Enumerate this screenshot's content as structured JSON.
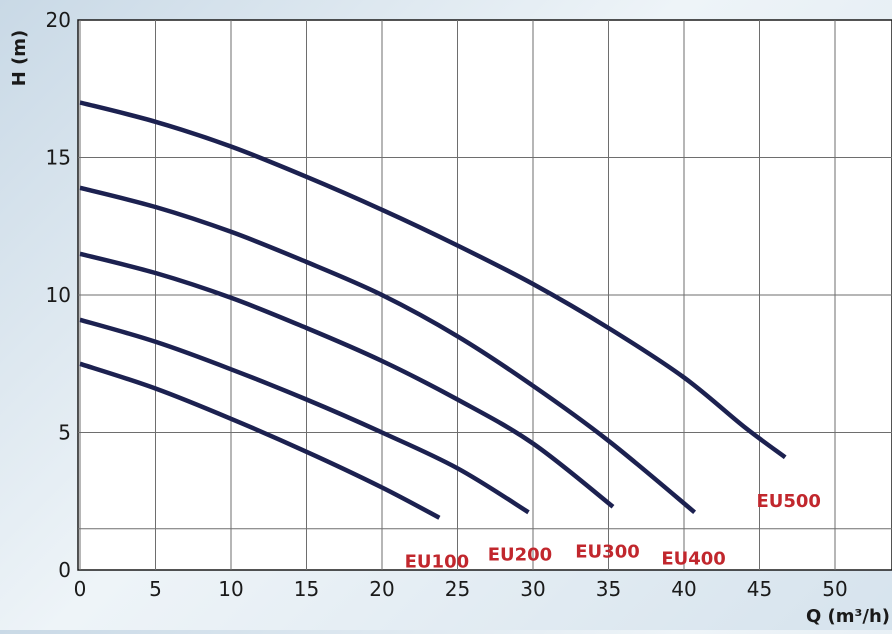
{
  "chart_data": {
    "type": "line",
    "title": "",
    "xlabel": "Q (m³/h)",
    "ylabel": "H (m)",
    "xlim": [
      0,
      52
    ],
    "ylim": [
      0,
      20
    ],
    "xticks": [
      0,
      5,
      10,
      15,
      20,
      25,
      30,
      35,
      40,
      45,
      50
    ],
    "yticks": [
      0,
      5,
      10,
      15,
      20
    ],
    "xgrid": [
      0,
      5,
      10,
      15,
      20,
      25,
      30,
      35,
      40,
      45,
      50
    ],
    "ygrid": [
      0,
      1.5,
      5,
      10,
      15,
      20
    ],
    "grid": true,
    "legend": "none",
    "line_color": "#1c2150",
    "label_color": "#c1272d",
    "series": [
      {
        "name": "EU100",
        "x": [
          0,
          5,
          10,
          15,
          20,
          23.8
        ],
        "y": [
          7.5,
          6.6,
          5.5,
          4.3,
          3.0,
          1.9
        ],
        "label_at": [
          21.5,
          0.1
        ]
      },
      {
        "name": "EU200",
        "x": [
          0,
          5,
          10,
          15,
          20,
          25,
          29.7
        ],
        "y": [
          9.1,
          8.3,
          7.3,
          6.2,
          5.0,
          3.7,
          2.1
        ],
        "label_at": [
          27,
          0.35
        ]
      },
      {
        "name": "EU300",
        "x": [
          0,
          5,
          10,
          15,
          20,
          25,
          30,
          35.3
        ],
        "y": [
          11.5,
          10.8,
          9.9,
          8.8,
          7.6,
          6.2,
          4.6,
          2.3
        ],
        "label_at": [
          32.8,
          0.45
        ]
      },
      {
        "name": "EU400",
        "x": [
          0,
          5,
          10,
          15,
          20,
          25,
          30,
          35,
          40.7
        ],
        "y": [
          13.9,
          13.2,
          12.3,
          11.2,
          10.0,
          8.5,
          6.7,
          4.7,
          2.1
        ],
        "label_at": [
          38.5,
          0.2
        ]
      },
      {
        "name": "EU500",
        "x": [
          0,
          5,
          10,
          15,
          20,
          25,
          30,
          35,
          40,
          44,
          46.7
        ],
        "y": [
          17.0,
          16.3,
          15.4,
          14.3,
          13.1,
          11.8,
          10.4,
          8.8,
          7.0,
          5.2,
          4.1
        ],
        "label_at": [
          44.8,
          2.3
        ]
      }
    ]
  }
}
